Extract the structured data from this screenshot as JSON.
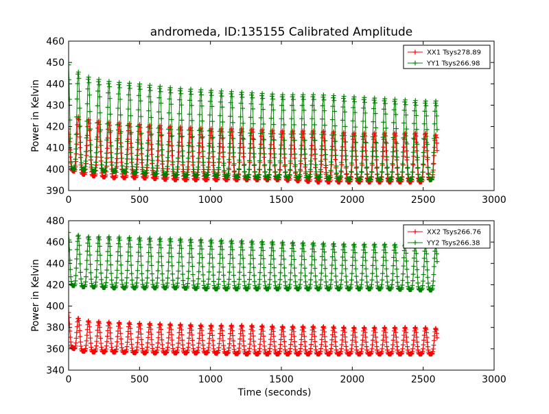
{
  "figure": {
    "title": "andromeda, ID:135155 Calibrated Amplitude"
  },
  "chart_data": [
    {
      "type": "line",
      "title": "andromeda, ID:135155 Calibrated Amplitude",
      "xlabel": "",
      "ylabel": "Power in Kelvin",
      "xlim": [
        0,
        3000
      ],
      "ylim": [
        390,
        460
      ],
      "xticks": [
        "0",
        "500",
        "1000",
        "1500",
        "2000",
        "2500",
        "3000"
      ],
      "yticks": [
        "390",
        "400",
        "410",
        "420",
        "430",
        "440",
        "450",
        "460"
      ],
      "legend_position": "top-right",
      "grid": false,
      "marker": "+",
      "period_seconds": 72,
      "series": [
        {
          "name": "XX1 Tsys278.89",
          "color": "#ff0000",
          "x": [
            0,
            75,
            150,
            300,
            500,
            750,
            1000,
            1250,
            1500,
            1750,
            2000,
            2250,
            2500,
            2600
          ],
          "min": [
            400,
            398,
            397,
            396,
            396,
            395,
            395,
            395,
            395,
            394,
            394,
            394,
            394,
            396
          ],
          "max": [
            420,
            425,
            423,
            422,
            421,
            420,
            419,
            419,
            418,
            418,
            417,
            417,
            417,
            416
          ]
        },
        {
          "name": "YY1 Tsys266.98",
          "color": "#008000",
          "x": [
            0,
            75,
            150,
            300,
            500,
            750,
            1000,
            1250,
            1500,
            1750,
            2000,
            2250,
            2500,
            2600
          ],
          "min": [
            400,
            400,
            399,
            399,
            398,
            397,
            397,
            396,
            396,
            396,
            395,
            395,
            395,
            395
          ],
          "max": [
            452,
            445,
            443,
            441,
            440,
            438,
            437,
            436,
            435,
            435,
            434,
            433,
            432,
            432
          ]
        }
      ]
    },
    {
      "type": "line",
      "title": "",
      "xlabel": "Time (seconds)",
      "ylabel": "Power in Kelvin",
      "xlim": [
        0,
        3000
      ],
      "ylim": [
        340,
        480
      ],
      "xticks": [
        "0",
        "500",
        "1000",
        "1500",
        "2000",
        "2500",
        "3000"
      ],
      "yticks": [
        "340",
        "360",
        "380",
        "400",
        "420",
        "440",
        "460",
        "480"
      ],
      "legend_position": "top-right",
      "grid": false,
      "marker": "+",
      "period_seconds": 72,
      "series": [
        {
          "name": "XX2 Tsys266.76",
          "color": "#ff0000",
          "x": [
            0,
            75,
            150,
            300,
            500,
            750,
            1000,
            1250,
            1500,
            1750,
            2000,
            2250,
            2500,
            2600
          ],
          "min": [
            362,
            358,
            357,
            357,
            356,
            356,
            356,
            355,
            355,
            355,
            355,
            355,
            355,
            355
          ],
          "max": [
            396,
            388,
            386,
            385,
            384,
            383,
            382,
            382,
            381,
            381,
            380,
            380,
            380,
            379
          ]
        },
        {
          "name": "YY2 Tsys266.38",
          "color": "#008000",
          "x": [
            0,
            75,
            150,
            300,
            500,
            750,
            1000,
            1250,
            1500,
            1750,
            2000,
            2250,
            2500,
            2600
          ],
          "min": [
            420,
            418,
            418,
            417,
            417,
            417,
            416,
            416,
            416,
            416,
            416,
            416,
            415,
            415
          ],
          "max": [
            472,
            466,
            465,
            465,
            464,
            463,
            462,
            461,
            460,
            459,
            458,
            458,
            457,
            457
          ]
        }
      ]
    }
  ]
}
